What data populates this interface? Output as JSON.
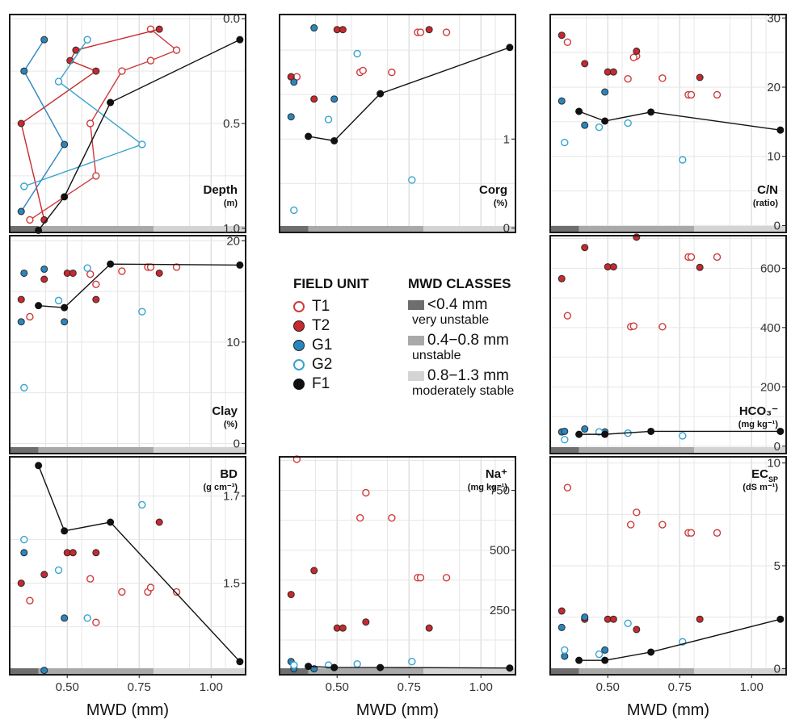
{
  "colors": {
    "T1": {
      "fill": "#ffffff",
      "stroke": "#d03a3a"
    },
    "T2": {
      "fill": "#c8282e",
      "stroke": "#2a2a2a"
    },
    "G1": {
      "fill": "#2a86bf",
      "stroke": "#2a2a2a"
    },
    "G2": {
      "fill": "#ffffff",
      "stroke": "#38a3cf"
    },
    "F1": {
      "fill": "#111111",
      "stroke": "#111111"
    },
    "class1": "#6e6e6e",
    "class2": "#a9a9a9",
    "class3": "#d4d4d4",
    "grid": "#e6e6e6"
  },
  "legend": {
    "field_unit_title": "FIELD UNIT",
    "units": [
      "T1",
      "T2",
      "G1",
      "G2",
      "F1"
    ],
    "mwd_classes_title": "MWD CLASSES",
    "classes": [
      {
        "range": "<0.4 mm",
        "desc": "very unstable"
      },
      {
        "range": "0.4−0.8 mm",
        "desc": "unstable"
      },
      {
        "range": "0.8−1.3 mm",
        "desc": "moderately stable"
      }
    ]
  },
  "chart_data": [
    {
      "id": "depth",
      "type": "line",
      "label": "Depth",
      "unit": "(m)",
      "xlabel": "MWD (mm)",
      "xlim": [
        0.3,
        1.12
      ],
      "ylim": [
        1.02,
        -0.02
      ],
      "y_reversed": true,
      "xticks": [],
      "yticks": [
        "0.0",
        "0.5",
        "1.0"
      ],
      "ytick_values": [
        0,
        0.5,
        1.0
      ],
      "series": [
        {
          "name": "T1",
          "connected": true,
          "x": [
            0.79,
            0.88,
            0.79,
            0.69,
            0.58,
            0.6,
            0.37
          ],
          "y": [
            0.05,
            0.15,
            0.2,
            0.25,
            0.5,
            0.75,
            0.96
          ]
        },
        {
          "name": "T2",
          "connected": true,
          "x": [
            0.82,
            0.53,
            0.51,
            0.6,
            0.34,
            0.42
          ],
          "y": [
            0.05,
            0.15,
            0.2,
            0.25,
            0.5,
            0.96
          ]
        },
        {
          "name": "G1",
          "connected": true,
          "x": [
            0.42,
            0.35,
            0.49,
            0.34
          ],
          "y": [
            0.1,
            0.25,
            0.6,
            0.92
          ]
        },
        {
          "name": "G2",
          "connected": true,
          "x": [
            0.57,
            0.47,
            0.76,
            0.35
          ],
          "y": [
            0.1,
            0.3,
            0.6,
            0.8
          ]
        },
        {
          "name": "F1",
          "connected": true,
          "x": [
            1.1,
            0.65,
            0.49,
            0.4
          ],
          "y": [
            0.1,
            0.4,
            0.85,
            1.01
          ]
        }
      ]
    },
    {
      "id": "corg",
      "type": "scatter",
      "label": "Corg",
      "unit": "(%)",
      "xlabel": "MWD (mm)",
      "xlim": [
        0.3,
        1.12
      ],
      "ylim": [
        -0.05,
        2.4
      ],
      "xticks": [],
      "yticks": [
        "0",
        "1"
      ],
      "ytick_values": [
        0,
        1
      ],
      "series": [
        {
          "name": "T1",
          "connected": false,
          "x": [
            0.78,
            0.79,
            0.88,
            0.58,
            0.59,
            0.69,
            0.36
          ],
          "y": [
            2.2,
            2.2,
            2.2,
            1.75,
            1.77,
            1.75,
            1.7
          ]
        },
        {
          "name": "T2",
          "connected": false,
          "x": [
            0.5,
            0.52,
            0.82,
            0.34,
            0.34,
            0.42
          ],
          "y": [
            2.23,
            2.23,
            2.23,
            1.7,
            1.7,
            1.45
          ]
        },
        {
          "name": "G1",
          "connected": false,
          "x": [
            0.42,
            0.35,
            0.34,
            0.49
          ],
          "y": [
            2.25,
            1.64,
            1.25,
            1.45
          ]
        },
        {
          "name": "G2",
          "connected": false,
          "x": [
            0.57,
            0.47,
            0.76,
            0.35
          ],
          "y": [
            1.96,
            1.22,
            0.54,
            0.2
          ]
        },
        {
          "name": "F1",
          "connected": true,
          "x": [
            0.4,
            0.49,
            0.65,
            1.1
          ],
          "y": [
            1.03,
            0.98,
            1.51,
            2.03
          ]
        }
      ]
    },
    {
      "id": "cn",
      "type": "scatter",
      "label": "C/N",
      "unit": "(ratio)",
      "xlabel": "MWD (mm)",
      "xlim": [
        0.3,
        1.12
      ],
      "ylim": [
        -1,
        30.5
      ],
      "xticks": [],
      "yticks": [
        "0",
        "10",
        "20",
        "30"
      ],
      "ytick_values": [
        0,
        10,
        20,
        30
      ],
      "series": [
        {
          "name": "T1",
          "connected": false,
          "x": [
            0.36,
            0.6,
            0.59,
            0.57,
            0.69,
            0.78,
            0.79,
            0.88
          ],
          "y": [
            26.5,
            24.5,
            24.3,
            21.2,
            21.3,
            18.9,
            18.9,
            18.9
          ]
        },
        {
          "name": "T2",
          "connected": false,
          "x": [
            0.34,
            0.42,
            0.5,
            0.52,
            0.6,
            0.82
          ],
          "y": [
            27.5,
            23.4,
            22.2,
            22.2,
            25.2,
            21.4
          ]
        },
        {
          "name": "G1",
          "connected": false,
          "x": [
            0.34,
            0.49,
            0.42
          ],
          "y": [
            18.0,
            19.3,
            14.5
          ]
        },
        {
          "name": "G2",
          "connected": false,
          "x": [
            0.47,
            0.57,
            0.35,
            0.76
          ],
          "y": [
            14.2,
            14.8,
            12.0,
            9.5
          ]
        },
        {
          "name": "F1",
          "connected": true,
          "x": [
            0.4,
            0.49,
            0.65,
            1.1
          ],
          "y": [
            16.5,
            15.1,
            16.4,
            13.8
          ]
        }
      ]
    },
    {
      "id": "clay",
      "type": "scatter",
      "label": "Clay",
      "unit": "(%)",
      "xlabel": "MWD (mm)",
      "xlim": [
        0.3,
        1.12
      ],
      "ylim": [
        -1,
        20.5
      ],
      "xticks": [],
      "yticks": [
        "0",
        "10",
        "20"
      ],
      "ytick_values": [
        0,
        10,
        20
      ],
      "series": [
        {
          "name": "T1",
          "connected": false,
          "x": [
            0.37,
            0.58,
            0.6,
            0.69,
            0.78,
            0.79,
            0.88
          ],
          "y": [
            12.5,
            16.7,
            15.7,
            17.0,
            17.4,
            17.4,
            17.4
          ]
        },
        {
          "name": "T2",
          "connected": false,
          "x": [
            0.34,
            0.42,
            0.5,
            0.52,
            0.6,
            0.82
          ],
          "y": [
            14.2,
            16.2,
            16.8,
            16.8,
            14.2,
            16.8
          ]
        },
        {
          "name": "G1",
          "connected": false,
          "x": [
            0.35,
            0.42,
            0.34,
            0.49
          ],
          "y": [
            16.8,
            17.2,
            12.0,
            12.0
          ]
        },
        {
          "name": "G2",
          "connected": false,
          "x": [
            0.57,
            0.47,
            0.76,
            0.35
          ],
          "y": [
            17.3,
            14.1,
            13.0,
            5.5
          ]
        },
        {
          "name": "F1",
          "connected": true,
          "x": [
            0.4,
            0.49,
            0.65,
            1.1
          ],
          "y": [
            13.6,
            13.4,
            17.7,
            17.6
          ]
        }
      ]
    },
    {
      "id": "hco3",
      "type": "scatter",
      "label": "HCO₃⁻",
      "unit": "(mg kg⁻¹)",
      "xlabel": "MWD (mm)",
      "xlim": [
        0.3,
        1.12
      ],
      "ylim": [
        -25,
        710
      ],
      "xticks": [],
      "yticks": [
        "0",
        "200",
        "400",
        "600"
      ],
      "ytick_values": [
        0,
        200,
        400,
        600
      ],
      "series": [
        {
          "name": "T1",
          "connected": false,
          "x": [
            0.36,
            0.58,
            0.59,
            0.69,
            0.78,
            0.79,
            0.88
          ],
          "y": [
            440,
            403,
            405,
            403,
            638,
            638,
            638
          ]
        },
        {
          "name": "T2",
          "connected": false,
          "x": [
            0.34,
            0.42,
            0.5,
            0.52,
            0.6,
            0.82
          ],
          "y": [
            565,
            670,
            605,
            605,
            705,
            603
          ]
        },
        {
          "name": "G1",
          "connected": false,
          "x": [
            0.34,
            0.35,
            0.42,
            0.49
          ],
          "y": [
            48,
            50,
            58,
            48
          ]
        },
        {
          "name": "G2",
          "connected": false,
          "x": [
            0.35,
            0.47,
            0.57,
            0.76
          ],
          "y": [
            22,
            48,
            44,
            35
          ]
        },
        {
          "name": "F1",
          "connected": true,
          "x": [
            0.4,
            0.49,
            0.65,
            1.1
          ],
          "y": [
            40,
            40,
            50,
            50
          ]
        }
      ]
    },
    {
      "id": "bd",
      "type": "line",
      "label": "BD",
      "unit": "(g cm⁻³)",
      "xlabel": "MWD (mm)",
      "xlim": [
        0.3,
        1.12
      ],
      "ylim": [
        1.29,
        1.79
      ],
      "xticks": [
        "0.50",
        "0.75",
        "1.00"
      ],
      "xtick_values": [
        0.5,
        0.75,
        1.0
      ],
      "yticks": [
        "1.5",
        "1.7"
      ],
      "ytick_values": [
        1.5,
        1.7
      ],
      "series": [
        {
          "name": "T1",
          "connected": false,
          "x": [
            0.37,
            0.58,
            0.6,
            0.69,
            0.78,
            0.79,
            0.88
          ],
          "y": [
            1.46,
            1.51,
            1.41,
            1.48,
            1.48,
            1.49,
            1.48
          ]
        },
        {
          "name": "T2",
          "connected": false,
          "x": [
            0.34,
            0.42,
            0.5,
            0.52,
            0.6,
            0.82
          ],
          "y": [
            1.5,
            1.52,
            1.57,
            1.57,
            1.57,
            1.64
          ]
        },
        {
          "name": "G1",
          "connected": false,
          "x": [
            0.35,
            0.49,
            0.42
          ],
          "y": [
            1.57,
            1.42,
            1.3
          ]
        },
        {
          "name": "G2",
          "connected": false,
          "x": [
            0.35,
            0.47,
            0.57,
            0.76
          ],
          "y": [
            1.6,
            1.53,
            1.42,
            1.68
          ]
        },
        {
          "name": "F1",
          "connected": true,
          "x": [
            0.4,
            0.49,
            0.65,
            1.1
          ],
          "y": [
            1.77,
            1.62,
            1.64,
            1.32
          ]
        }
      ]
    },
    {
      "id": "na",
      "type": "scatter",
      "label": "Na⁺",
      "unit": "(mg kg⁻¹)",
      "xlabel": "MWD (mm)",
      "xlim": [
        0.3,
        1.12
      ],
      "ylim": [
        -20,
        890
      ],
      "xticks": [
        "0.50",
        "0.75",
        "1.00"
      ],
      "xtick_values": [
        0.5,
        0.75,
        1.0
      ],
      "yticks": [
        "250",
        "500",
        "750"
      ],
      "ytick_values": [
        250,
        500,
        750
      ],
      "series": [
        {
          "name": "T1",
          "connected": false,
          "x": [
            0.36,
            0.6,
            0.58,
            0.69,
            0.78,
            0.79,
            0.88
          ],
          "y": [
            880,
            740,
            635,
            635,
            385,
            385,
            385
          ]
        },
        {
          "name": "T2",
          "connected": false,
          "x": [
            0.34,
            0.42,
            0.5,
            0.52,
            0.6,
            0.82
          ],
          "y": [
            315,
            415,
            175,
            175,
            200,
            175
          ]
        },
        {
          "name": "G1",
          "connected": false,
          "x": [
            0.34,
            0.35,
            0.42,
            0.49
          ],
          "y": [
            35,
            5,
            5,
            10
          ]
        },
        {
          "name": "G2",
          "connected": false,
          "x": [
            0.35,
            0.47,
            0.57,
            0.76
          ],
          "y": [
            20,
            20,
            25,
            35
          ]
        },
        {
          "name": "F1",
          "connected": true,
          "x": [
            0.4,
            0.49,
            0.65,
            1.1
          ],
          "y": [
            15,
            10,
            10,
            8
          ]
        }
      ]
    },
    {
      "id": "ec",
      "type": "scatter",
      "label": "EC",
      "label_sub": "SP",
      "unit": "(dS m⁻¹)",
      "xlabel": "MWD (mm)",
      "xlim": [
        0.3,
        1.12
      ],
      "ylim": [
        -0.3,
        10.3
      ],
      "xticks": [
        "0.50",
        "0.75",
        "1.00"
      ],
      "xtick_values": [
        0.5,
        0.75,
        1.0
      ],
      "yticks": [
        "0",
        "5",
        "10"
      ],
      "ytick_values": [
        0,
        5,
        10
      ],
      "series": [
        {
          "name": "T1",
          "connected": false,
          "x": [
            0.36,
            0.6,
            0.58,
            0.69,
            0.78,
            0.79,
            0.88
          ],
          "y": [
            8.8,
            7.6,
            7.0,
            7.0,
            6.6,
            6.6,
            6.6
          ]
        },
        {
          "name": "T2",
          "connected": false,
          "x": [
            0.34,
            0.42,
            0.5,
            0.52,
            0.6,
            0.82
          ],
          "y": [
            2.8,
            2.4,
            2.4,
            2.4,
            1.9,
            2.4
          ]
        },
        {
          "name": "G1",
          "connected": false,
          "x": [
            0.34,
            0.35,
            0.42,
            0.49
          ],
          "y": [
            2.0,
            0.6,
            2.5,
            0.9
          ]
        },
        {
          "name": "G2",
          "connected": false,
          "x": [
            0.35,
            0.47,
            0.57,
            0.76
          ],
          "y": [
            0.9,
            0.7,
            2.2,
            1.3
          ]
        },
        {
          "name": "F1",
          "connected": true,
          "x": [
            0.4,
            0.49,
            0.65,
            1.1
          ],
          "y": [
            0.4,
            0.4,
            0.8,
            2.4
          ]
        }
      ]
    }
  ]
}
